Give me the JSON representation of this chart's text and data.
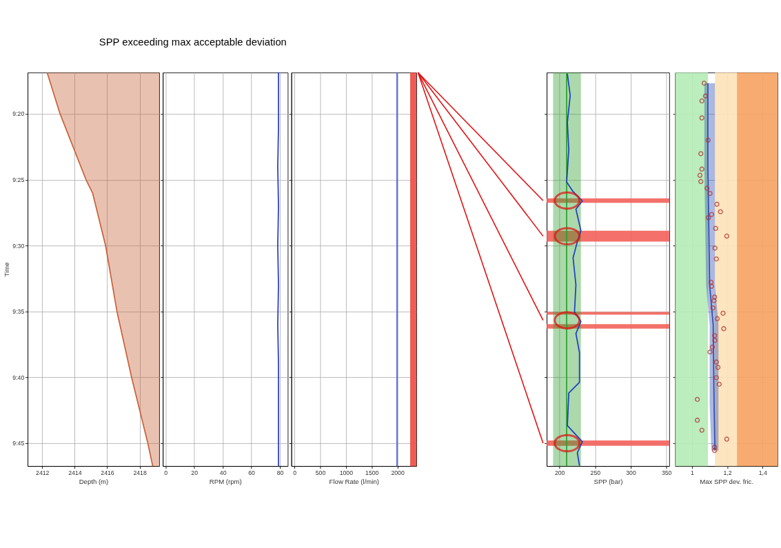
{
  "chart_data": [
    {
      "type": "line",
      "orientation": "horizontal",
      "xlabel": "Depth (m)",
      "ylabel": "Time",
      "grid": true,
      "xlim": [
        2411.1,
        2419.2
      ],
      "xticks": [
        2412,
        2414,
        2416,
        2418
      ],
      "ylim": [
        9.7789,
        9.2808
      ],
      "yticks": [
        {
          "value": 9.3333,
          "label": "9:20"
        },
        {
          "value": 9.4167,
          "label": "9:25"
        },
        {
          "value": 9.5,
          "label": "9:30"
        },
        {
          "value": 9.5833,
          "label": "9:35"
        },
        {
          "value": 9.6667,
          "label": "9:40"
        },
        {
          "value": 9.75,
          "label": "9:45"
        }
      ],
      "series": [
        {
          "color": "#c8643c",
          "x": [
            9.2808,
            9.3333,
            9.4167,
            9.4333,
            9.5,
            9.5833,
            9.6667,
            9.75,
            9.7789
          ],
          "values": [
            2412.3,
            2413.1,
            2414.7,
            2415.1,
            2415.9,
            2416.6,
            2417.5,
            2418.5,
            2418.8
          ],
          "lower": [
            2412.3,
            2413.1,
            2414.7,
            2415.1,
            2415.9,
            2416.6,
            2417.5,
            2418.5,
            2418.8
          ],
          "upper": [
            2419.2,
            2419.2,
            2419.2,
            2419.2,
            2419.2,
            2419.2,
            2419.2,
            2419.2,
            2419.2
          ]
        }
      ]
    },
    {
      "type": "line",
      "orientation": "horizontal",
      "xlabel": "RPM (rpm)",
      "grid": true,
      "tick_labels": "x",
      "xlim": [
        -2,
        85.5
      ],
      "xticks": [
        0,
        20,
        40,
        60,
        80
      ],
      "ylim": [
        9.7789,
        9.2808
      ],
      "yticks": [
        {
          "value": 9.3333,
          "label": null
        },
        {
          "value": 9.4167,
          "label": null
        },
        {
          "value": 9.5,
          "label": null
        },
        {
          "value": 9.5833,
          "label": null
        },
        {
          "value": 9.6667,
          "label": null
        },
        {
          "value": 9.75,
          "label": null
        }
      ],
      "series": [
        {
          "color": "#2a3cc0",
          "x": [
            9.2808,
            9.35,
            9.4,
            9.45,
            9.5,
            9.55,
            9.6,
            9.65,
            9.7,
            9.7789
          ],
          "values": [
            79,
            79,
            78.5,
            79,
            78.5,
            79,
            78.5,
            79,
            79,
            79
          ]
        }
      ]
    },
    {
      "type": "line",
      "orientation": "horizontal",
      "xlabel": "Flow Rate (l/min)",
      "grid": true,
      "tick_labels": "x",
      "xlim": [
        -60,
        2365
      ],
      "xticks": [
        0,
        500,
        1000,
        1500,
        2000
      ],
      "ylim": [
        9.7789,
        9.2808
      ],
      "yticks": [
        {
          "value": 9.3333,
          "label": null
        },
        {
          "value": 9.4167,
          "label": null
        },
        {
          "value": 9.5,
          "label": null
        },
        {
          "value": 9.5833,
          "label": null
        },
        {
          "value": 9.6667,
          "label": null
        },
        {
          "value": 9.75,
          "label": null
        }
      ],
      "bands": [
        {
          "axis": "x",
          "from": 2245,
          "to": 2365,
          "color": "#ee4a42"
        }
      ],
      "series": [
        {
          "color": "#4a5fd0",
          "x": [
            9.2808,
            9.4,
            9.5,
            9.6,
            9.7,
            9.7789
          ],
          "values": [
            1990,
            1990,
            1990,
            1990,
            1990,
            1990
          ]
        }
      ]
    },
    {
      "type": "line",
      "orientation": "horizontal",
      "xlabel": "SPP (bar)",
      "grid": true,
      "tick_labels": "x",
      "xlim": [
        182,
        354
      ],
      "xticks": [
        200,
        250,
        300,
        350
      ],
      "ylim": [
        9.7789,
        9.2808
      ],
      "yticks": [
        {
          "value": 9.3333,
          "label": null
        },
        {
          "value": 9.4167,
          "label": null
        },
        {
          "value": 9.5,
          "label": null
        },
        {
          "value": 9.5833,
          "label": null
        },
        {
          "value": 9.6667,
          "label": null
        },
        {
          "value": 9.75,
          "label": null
        }
      ],
      "annotations": [
        "SPP exceeding max acceptable deviation"
      ],
      "bands": [
        {
          "axis": "y",
          "from": 9.44,
          "to": 9.4458,
          "color": "#f2625a"
        },
        {
          "axis": "y",
          "from": 9.481,
          "to": 9.4948,
          "color": "#f2625a"
        },
        {
          "axis": "y",
          "from": 9.5838,
          "to": 9.5873,
          "color": "#f2625a"
        },
        {
          "axis": "y",
          "from": 9.5993,
          "to": 9.605,
          "color": "#f2625a"
        },
        {
          "axis": "y",
          "from": 9.7465,
          "to": 9.7533,
          "color": "#f2625a"
        }
      ],
      "series": [
        {
          "color": "#2ca02c",
          "x": [
            9.2808,
            9.7789
          ],
          "values": [
            210,
            210
          ],
          "lower": [
            191,
            191
          ],
          "upper": [
            230,
            230
          ]
        },
        {
          "color": "#1f3fbf",
          "x": [
            9.2823,
            9.3098,
            9.344,
            9.3783,
            9.4193,
            9.4315,
            9.4433,
            9.4537,
            9.481,
            9.4948,
            9.5153,
            9.5495,
            9.5838,
            9.5958,
            9.6112,
            9.6352,
            9.6728,
            9.6865,
            9.7277,
            9.7482,
            9.762,
            9.7785
          ],
          "values": [
            211,
            215,
            211,
            213,
            210,
            219,
            232,
            223,
            230,
            225,
            219,
            223,
            221,
            230,
            223,
            228,
            228,
            213,
            211,
            232,
            225,
            228
          ]
        }
      ]
    },
    {
      "type": "scatter",
      "orientation": "horizontal",
      "xlabel": "Max SPP dev. fric.",
      "grid": true,
      "tick_labels": "x",
      "xlim": [
        0.905,
        1.484
      ],
      "xticks": [
        1,
        {
          "value": 1.2,
          "label": "1,2"
        },
        {
          "value": 1.4,
          "label": "1,4"
        }
      ],
      "ylim": [
        9.7789,
        9.2808
      ],
      "yticks": [
        {
          "value": 9.3333,
          "label": null
        },
        {
          "value": 9.4167,
          "label": null
        },
        {
          "value": 9.5,
          "label": null
        },
        {
          "value": 9.5833,
          "label": null
        },
        {
          "value": 9.6667,
          "label": null
        },
        {
          "value": 9.75,
          "label": null
        }
      ],
      "bands": [
        {
          "axis": "x",
          "from": 0.905,
          "to": 1.09,
          "color": "#b5ebb5"
        },
        {
          "axis": "x",
          "from": 1.13,
          "to": 1.255,
          "color": "#fde2b8"
        },
        {
          "axis": "x",
          "from": 1.255,
          "to": 1.484,
          "color": "#f7a261"
        }
      ],
      "series": [
        {
          "type": "line",
          "color": "#3050b0",
          "x": [
            9.2943,
            9.4,
            9.55,
            9.6,
            9.7,
            9.7592
          ],
          "values": [
            1.09,
            1.09,
            1.1,
            1.12,
            1.125,
            1.13
          ],
          "lower": [
            1.07,
            1.07,
            1.08,
            1.1,
            1.1,
            1.11
          ],
          "upper": [
            1.13,
            1.13,
            1.13,
            1.15,
            1.15,
            1.15
          ]
        },
        {
          "marker": "circle",
          "color": "#b03030",
          "x": [
            9.2943,
            9.3105,
            9.3167,
            9.3382,
            9.3663,
            9.3835,
            9.403,
            9.4108,
            9.4187,
            9.4272,
            9.4338,
            9.4475,
            9.457,
            9.4605,
            9.4645,
            9.478,
            9.4878,
            9.503,
            9.5167,
            9.5462,
            9.5513,
            9.565,
            9.5695,
            9.5787,
            9.5855,
            9.5923,
            9.605,
            9.6138,
            9.6197,
            9.6283,
            9.6345,
            9.6472,
            9.654,
            9.667,
            9.6753,
            9.6945,
            9.7208,
            9.7335,
            9.7448,
            9.755,
            9.7592
          ],
          "values": [
            1.069,
            1.076,
            1.056,
            1.056,
            1.091,
            1.05,
            1.056,
            1.045,
            1.05,
            1.085,
            1.102,
            1.141,
            1.161,
            1.111,
            1.093,
            1.134,
            1.197,
            1.13,
            1.138,
            1.108,
            1.111,
            1.128,
            1.125,
            1.119,
            1.176,
            1.143,
            1.18,
            1.128,
            1.129,
            1.115,
            1.102,
            1.138,
            1.147,
            1.138,
            1.154,
            1.03,
            1.03,
            1.056,
            1.197,
            1.128,
            1.128
          ]
        }
      ]
    }
  ]
}
